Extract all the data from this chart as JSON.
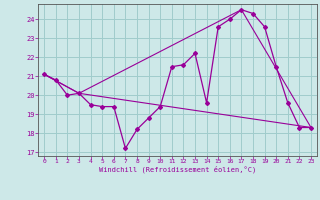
{
  "title": "",
  "xlabel": "Windchill (Refroidissement éolien,°C)",
  "bg_color": "#cde8e8",
  "grid_color": "#a0cccc",
  "line_color": "#990099",
  "spine_color": "#555555",
  "xlim": [
    -0.5,
    23.5
  ],
  "ylim": [
    16.8,
    24.8
  ],
  "yticks": [
    17,
    18,
    19,
    20,
    21,
    22,
    23,
    24
  ],
  "xticks": [
    0,
    1,
    2,
    3,
    4,
    5,
    6,
    7,
    8,
    9,
    10,
    11,
    12,
    13,
    14,
    15,
    16,
    17,
    18,
    19,
    20,
    21,
    22,
    23
  ],
  "series1_x": [
    0,
    1,
    2,
    3,
    4,
    5,
    6,
    7,
    8,
    9,
    10,
    11,
    12,
    13,
    14,
    15,
    16,
    17,
    18,
    19,
    20,
    21,
    22,
    23
  ],
  "series1_y": [
    21.1,
    20.8,
    20.0,
    20.1,
    19.5,
    19.4,
    19.4,
    17.2,
    18.2,
    18.8,
    19.4,
    21.5,
    21.6,
    22.2,
    19.6,
    23.6,
    24.0,
    24.5,
    24.3,
    23.6,
    21.5,
    19.6,
    18.3,
    18.3
  ],
  "series2_x": [
    0,
    3,
    23
  ],
  "series2_y": [
    21.1,
    20.1,
    18.3
  ],
  "series3_x": [
    0,
    3,
    17,
    23
  ],
  "series3_y": [
    21.1,
    20.1,
    24.5,
    18.3
  ]
}
